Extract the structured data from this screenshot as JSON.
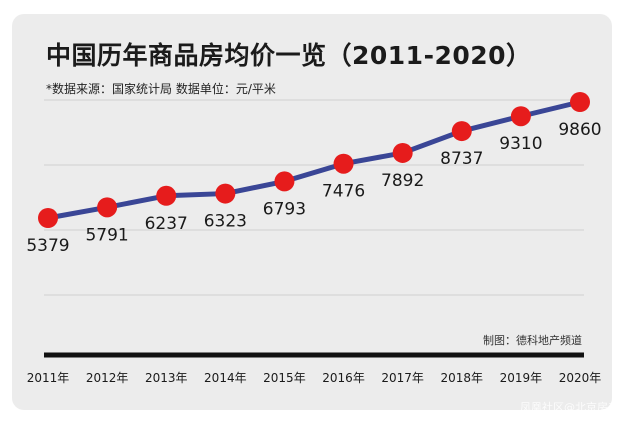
{
  "title": "中国历年商品房均价一览（2011-2020）",
  "subtitle": "*数据来源：国家统计局      数据单位：元/平米",
  "credit": "制图：德科地产频道",
  "watermark": "凤凰社区@北京房产",
  "colors": {
    "line": "#3a4696",
    "marker": "#e61c1c",
    "baseline": "#111111",
    "grid": "#cfcfcf",
    "background": "#ececec"
  },
  "chart_data": {
    "type": "line",
    "categories": [
      "2011年",
      "2012年",
      "2013年",
      "2014年",
      "2015年",
      "2016年",
      "2017年",
      "2018年",
      "2019年",
      "2020年"
    ],
    "values": [
      5379,
      5791,
      6237,
      6323,
      6793,
      7476,
      7892,
      8737,
      9310,
      9860
    ],
    "labels": [
      "5379",
      "5791",
      "6237",
      "6323",
      "6793",
      "7476",
      "7892",
      "8737",
      "9310",
      "9860"
    ],
    "title": "中国历年商品房均价一览（2011-2020）",
    "xlabel": "",
    "ylabel": "",
    "unit": "元/平米",
    "grid": true
  }
}
